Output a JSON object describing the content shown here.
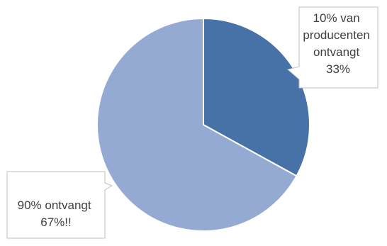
{
  "chart_data": {
    "type": "pie",
    "title": "",
    "slices": [
      {
        "label_lines": [
          "10% van",
          "producenten",
          "ontvangt",
          "33%"
        ],
        "value": 33,
        "color": "#4672a8"
      },
      {
        "label_lines": [
          "90% ontvangt",
          "67%!!"
        ],
        "value": 67,
        "color": "#95aad3"
      }
    ],
    "legend": "none",
    "slice_border_color": "#ffffff",
    "callout_border_color": "#bfbfbf"
  }
}
